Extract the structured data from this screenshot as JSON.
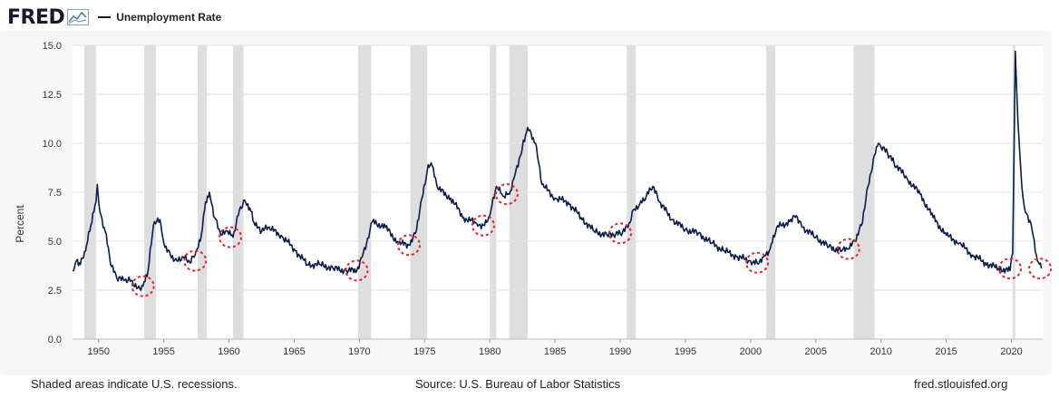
{
  "header": {
    "logo_text": "FRED",
    "logo_icon": "fred-chart-icon",
    "legend_label": "Unemployment Rate"
  },
  "footer": {
    "left": "Shaded areas indicate U.S. recessions.",
    "center": "Source: U.S. Bureau of Labor Statistics",
    "right": "fred.stlouisfed.org"
  },
  "colors": {
    "series": "#0b1b4a",
    "recession": "#dedede",
    "plot_bg": "#ffffff",
    "grid": "#e3e3e3",
    "highlight": "#e8212b"
  },
  "chart_data": {
    "type": "line",
    "title": "Unemployment Rate",
    "xlabel": "",
    "ylabel": "Percent",
    "xlim": [
      1948,
      2022.4
    ],
    "ylim": [
      0,
      15
    ],
    "grid": true,
    "legend": "top-left",
    "x_ticks": [
      1950,
      1955,
      1960,
      1965,
      1970,
      1975,
      1980,
      1985,
      1990,
      1995,
      2000,
      2005,
      2010,
      2015,
      2020
    ],
    "y_ticks": [
      0.0,
      2.5,
      5.0,
      7.5,
      10.0,
      12.5,
      15.0
    ],
    "y_tick_labels": [
      "0.0",
      "2.5",
      "5.0",
      "7.5",
      "10.0",
      "12.5",
      "15.0"
    ],
    "recessions": [
      [
        1948.9,
        1949.8
      ],
      [
        1953.5,
        1954.4
      ],
      [
        1957.6,
        1958.3
      ],
      [
        1960.3,
        1961.1
      ],
      [
        1969.9,
        1970.9
      ],
      [
        1973.9,
        1975.2
      ],
      [
        1980.0,
        1980.5
      ],
      [
        1981.5,
        1982.9
      ],
      [
        1990.5,
        1991.2
      ],
      [
        2001.2,
        2001.9
      ],
      [
        2007.9,
        2009.5
      ],
      [
        2020.1,
        2020.3
      ]
    ],
    "series": [
      {
        "name": "Unemployment Rate",
        "x": [
          1948.0,
          1948.3,
          1948.6,
          1949.0,
          1949.4,
          1949.8,
          1949.9,
          1950.1,
          1950.5,
          1951.0,
          1951.4,
          1952.0,
          1952.5,
          1953.0,
          1953.4,
          1953.8,
          1954.2,
          1954.7,
          1955.0,
          1955.5,
          1956.0,
          1956.5,
          1957.0,
          1957.4,
          1957.8,
          1958.2,
          1958.5,
          1958.9,
          1959.4,
          1959.9,
          1960.3,
          1960.8,
          1961.2,
          1961.6,
          1962.0,
          1962.5,
          1963.0,
          1964.0,
          1965.0,
          1966.0,
          1967.0,
          1968.0,
          1969.0,
          1969.8,
          1970.3,
          1970.8,
          1971.0,
          1972.0,
          1973.0,
          1973.8,
          1974.3,
          1974.8,
          1975.2,
          1975.5,
          1976.0,
          1977.0,
          1978.0,
          1979.0,
          1979.6,
          1980.0,
          1980.5,
          1981.0,
          1981.5,
          1982.0,
          1982.5,
          1982.9,
          1983.5,
          1984.0,
          1985.0,
          1986.0,
          1987.0,
          1988.0,
          1989.0,
          1989.5,
          1990.0,
          1990.6,
          1991.0,
          1991.5,
          1992.0,
          1992.5,
          1993.0,
          1994.0,
          1995.0,
          1996.0,
          1997.0,
          1998.0,
          1999.0,
          2000.0,
          2000.5,
          2001.0,
          2001.5,
          2002.0,
          2003.0,
          2003.5,
          2004.0,
          2005.0,
          2006.0,
          2007.0,
          2007.5,
          2008.0,
          2008.5,
          2009.0,
          2009.5,
          2009.8,
          2010.0,
          2010.5,
          2011.0,
          2012.0,
          2013.0,
          2014.0,
          2015.0,
          2016.0,
          2017.0,
          2018.0,
          2019.0,
          2019.9,
          2020.1,
          2020.3,
          2020.5,
          2020.8,
          2021.0,
          2021.5,
          2022.0,
          2022.3
        ],
        "y": [
          3.5,
          4.0,
          3.8,
          4.5,
          5.8,
          7.0,
          7.9,
          6.5,
          5.5,
          3.7,
          3.1,
          3.0,
          3.0,
          2.6,
          2.7,
          3.5,
          5.8,
          6.1,
          4.9,
          4.3,
          4.0,
          4.2,
          3.9,
          4.3,
          5.0,
          7.0,
          7.5,
          6.2,
          5.3,
          5.5,
          5.2,
          6.6,
          7.1,
          6.7,
          5.8,
          5.5,
          5.7,
          5.3,
          4.6,
          3.8,
          3.8,
          3.6,
          3.5,
          3.5,
          4.4,
          5.5,
          6.0,
          5.7,
          4.9,
          4.8,
          5.4,
          7.2,
          8.6,
          9.0,
          7.7,
          7.2,
          6.2,
          5.9,
          5.8,
          6.3,
          7.8,
          7.3,
          7.4,
          8.6,
          9.8,
          10.8,
          10.0,
          7.9,
          7.2,
          7.0,
          6.2,
          5.5,
          5.3,
          5.3,
          5.4,
          5.7,
          6.6,
          6.9,
          7.3,
          7.8,
          7.0,
          6.1,
          5.6,
          5.4,
          4.9,
          4.5,
          4.2,
          4.0,
          3.9,
          4.2,
          4.6,
          5.7,
          6.0,
          6.3,
          5.7,
          5.2,
          4.7,
          4.5,
          4.6,
          5.0,
          5.8,
          7.8,
          9.4,
          10.0,
          9.8,
          9.5,
          9.0,
          8.2,
          7.4,
          6.2,
          5.3,
          4.9,
          4.3,
          3.9,
          3.6,
          3.5,
          4.4,
          14.7,
          11.1,
          7.8,
          6.7,
          5.9,
          4.0,
          3.6
        ]
      }
    ]
  }
}
